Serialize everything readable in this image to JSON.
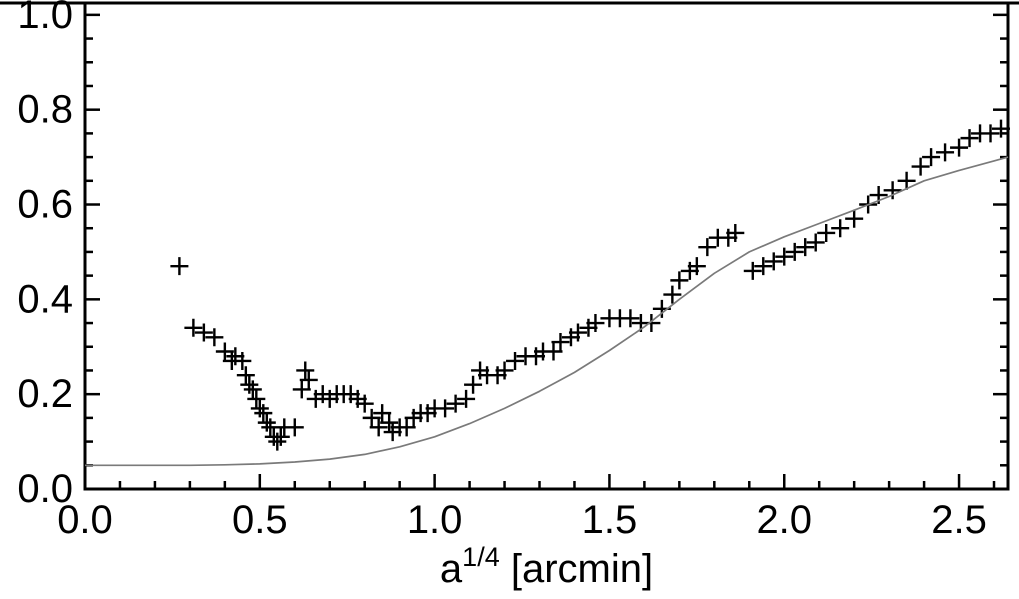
{
  "figure": {
    "background": "#ffffff",
    "frame_color": "#000000",
    "tick_color": "#000000"
  },
  "chart_data": {
    "type": "scatter",
    "title": "",
    "xlabel": "a^{1/4} [arcmin]",
    "xlabel_parts": [
      {
        "text": "a",
        "sup": false
      },
      {
        "text": "1/4",
        "sup": true
      },
      {
        "text": " [arcmin]",
        "sup": false
      }
    ],
    "ylabel": "",
    "xlim": [
      0,
      2.64
    ],
    "ylim": [
      0,
      1.025
    ],
    "x_ticks": [
      0.0,
      0.5,
      1.0,
      1.5,
      2.0,
      2.5
    ],
    "x_tick_labels": [
      "0.0",
      "0.5",
      "1.0",
      "1.5",
      "2.0",
      "2.5"
    ],
    "y_ticks": [
      0.0,
      0.2,
      0.4,
      0.6,
      0.8,
      1.0
    ],
    "y_tick_labels": [
      "0.0",
      "0.2",
      "0.4",
      "0.6",
      "0.8",
      "1.0"
    ],
    "x_minor_step": 0.1,
    "y_minor_step": 0.05,
    "grid": false,
    "legend": false,
    "series": [
      {
        "name": "measured-points",
        "type": "scatter",
        "marker": "plus",
        "color": "#000000",
        "points": [
          [
            0.27,
            0.47
          ],
          [
            0.31,
            0.34
          ],
          [
            0.34,
            0.33
          ],
          [
            0.37,
            0.32
          ],
          [
            0.4,
            0.29
          ],
          [
            0.42,
            0.27
          ],
          [
            0.43,
            0.28
          ],
          [
            0.45,
            0.27
          ],
          [
            0.46,
            0.24
          ],
          [
            0.47,
            0.22
          ],
          [
            0.48,
            0.21
          ],
          [
            0.49,
            0.19
          ],
          [
            0.5,
            0.17
          ],
          [
            0.51,
            0.16
          ],
          [
            0.52,
            0.14
          ],
          [
            0.53,
            0.13
          ],
          [
            0.54,
            0.11
          ],
          [
            0.55,
            0.1
          ],
          [
            0.56,
            0.11
          ],
          [
            0.57,
            0.13
          ],
          [
            0.6,
            0.13
          ],
          [
            0.62,
            0.21
          ],
          [
            0.63,
            0.25
          ],
          [
            0.64,
            0.23
          ],
          [
            0.66,
            0.19
          ],
          [
            0.68,
            0.2
          ],
          [
            0.7,
            0.19
          ],
          [
            0.72,
            0.2
          ],
          [
            0.74,
            0.2
          ],
          [
            0.76,
            0.2
          ],
          [
            0.78,
            0.19
          ],
          [
            0.8,
            0.18
          ],
          [
            0.82,
            0.15
          ],
          [
            0.84,
            0.13
          ],
          [
            0.85,
            0.16
          ],
          [
            0.87,
            0.14
          ],
          [
            0.88,
            0.12
          ],
          [
            0.9,
            0.13
          ],
          [
            0.92,
            0.13
          ],
          [
            0.94,
            0.15
          ],
          [
            0.96,
            0.16
          ],
          [
            0.98,
            0.16
          ],
          [
            1.0,
            0.17
          ],
          [
            1.03,
            0.17
          ],
          [
            1.06,
            0.18
          ],
          [
            1.09,
            0.19
          ],
          [
            1.11,
            0.22
          ],
          [
            1.13,
            0.25
          ],
          [
            1.15,
            0.24
          ],
          [
            1.18,
            0.24
          ],
          [
            1.2,
            0.25
          ],
          [
            1.23,
            0.27
          ],
          [
            1.26,
            0.28
          ],
          [
            1.29,
            0.28
          ],
          [
            1.31,
            0.29
          ],
          [
            1.34,
            0.29
          ],
          [
            1.36,
            0.31
          ],
          [
            1.39,
            0.32
          ],
          [
            1.41,
            0.33
          ],
          [
            1.44,
            0.34
          ],
          [
            1.46,
            0.35
          ],
          [
            1.5,
            0.36
          ],
          [
            1.53,
            0.36
          ],
          [
            1.56,
            0.36
          ],
          [
            1.59,
            0.35
          ],
          [
            1.62,
            0.35
          ],
          [
            1.65,
            0.38
          ],
          [
            1.68,
            0.41
          ],
          [
            1.7,
            0.44
          ],
          [
            1.73,
            0.46
          ],
          [
            1.75,
            0.47
          ],
          [
            1.78,
            0.51
          ],
          [
            1.81,
            0.53
          ],
          [
            1.84,
            0.53
          ],
          [
            1.86,
            0.54
          ],
          [
            1.91,
            0.46
          ],
          [
            1.94,
            0.47
          ],
          [
            1.97,
            0.48
          ],
          [
            2.0,
            0.49
          ],
          [
            2.03,
            0.5
          ],
          [
            2.06,
            0.51
          ],
          [
            2.09,
            0.52
          ],
          [
            2.12,
            0.54
          ],
          [
            2.16,
            0.55
          ],
          [
            2.2,
            0.57
          ],
          [
            2.24,
            0.6
          ],
          [
            2.27,
            0.62
          ],
          [
            2.31,
            0.63
          ],
          [
            2.35,
            0.65
          ],
          [
            2.39,
            0.68
          ],
          [
            2.42,
            0.7
          ],
          [
            2.46,
            0.71
          ],
          [
            2.5,
            0.72
          ],
          [
            2.53,
            0.74
          ],
          [
            2.56,
            0.75
          ],
          [
            2.59,
            0.75
          ],
          [
            2.62,
            0.76
          ]
        ]
      },
      {
        "name": "model-curve",
        "type": "line",
        "color": "#7a7a7a",
        "points": [
          [
            0.0,
            0.05
          ],
          [
            0.1,
            0.05
          ],
          [
            0.2,
            0.05
          ],
          [
            0.3,
            0.05
          ],
          [
            0.4,
            0.051
          ],
          [
            0.5,
            0.053
          ],
          [
            0.6,
            0.057
          ],
          [
            0.7,
            0.063
          ],
          [
            0.8,
            0.073
          ],
          [
            0.9,
            0.089
          ],
          [
            1.0,
            0.11
          ],
          [
            1.1,
            0.138
          ],
          [
            1.2,
            0.17
          ],
          [
            1.3,
            0.206
          ],
          [
            1.4,
            0.246
          ],
          [
            1.5,
            0.292
          ],
          [
            1.6,
            0.342
          ],
          [
            1.7,
            0.4
          ],
          [
            1.8,
            0.455
          ],
          [
            1.9,
            0.5
          ],
          [
            2.0,
            0.532
          ],
          [
            2.1,
            0.56
          ],
          [
            2.2,
            0.588
          ],
          [
            2.3,
            0.617
          ],
          [
            2.4,
            0.65
          ],
          [
            2.5,
            0.672
          ],
          [
            2.6,
            0.692
          ],
          [
            2.64,
            0.7
          ]
        ]
      }
    ]
  }
}
